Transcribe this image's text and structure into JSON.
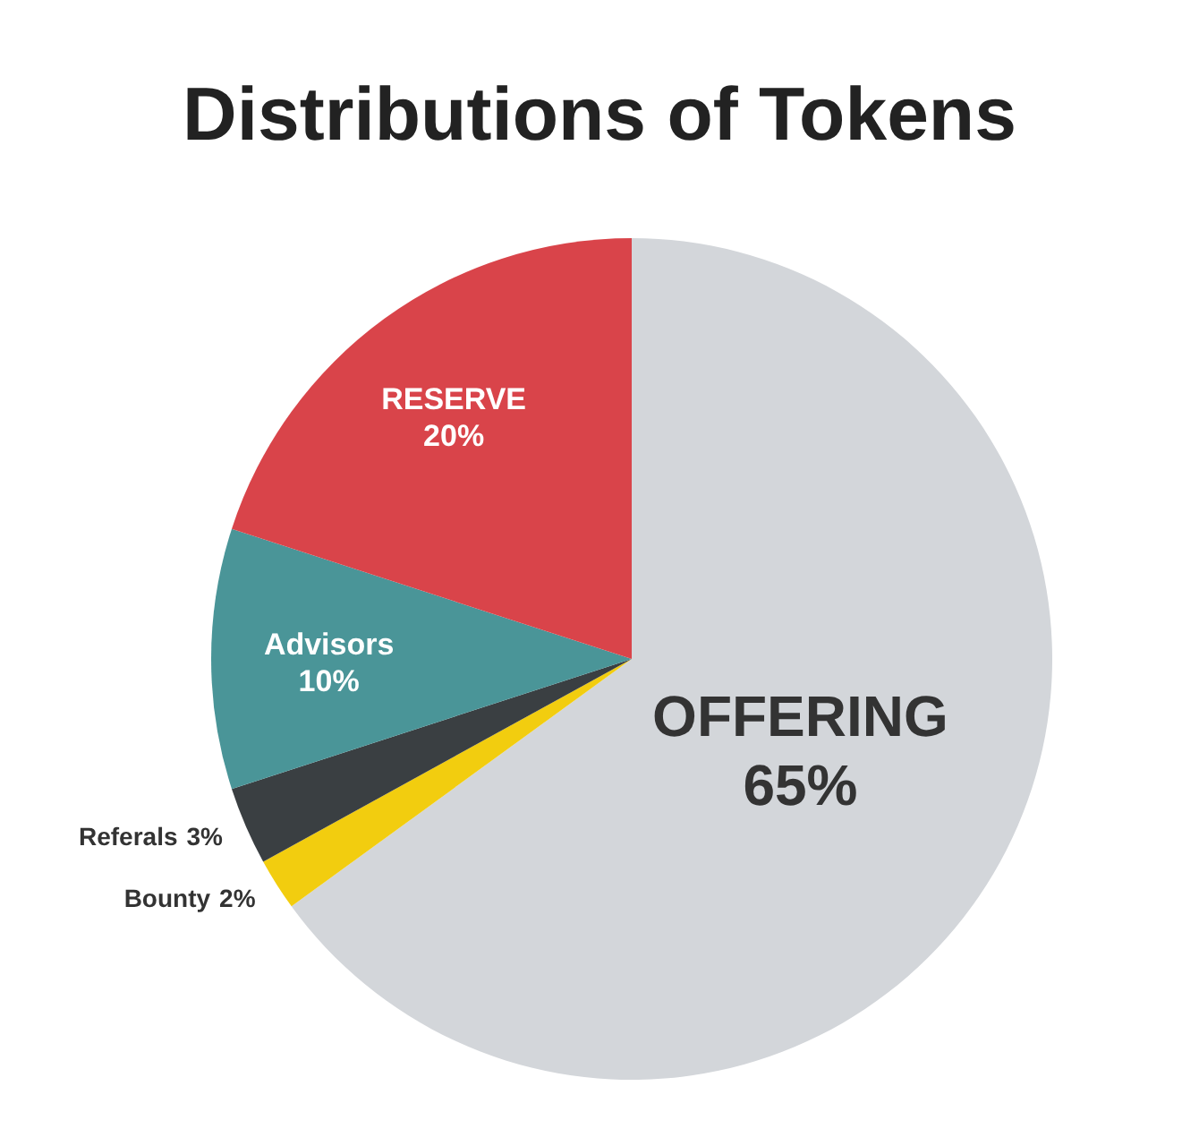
{
  "chart_data": {
    "type": "pie",
    "title": "Distributions of Tokens",
    "categories": [
      "OFFERING",
      "Bounty",
      "Referals",
      "Advisors",
      "RESERVE"
    ],
    "values": [
      65,
      2,
      3,
      10,
      20
    ],
    "colors": [
      "#d3d6da",
      "#f2cd0f",
      "#3a3f42",
      "#4a9598",
      "#d9444a"
    ],
    "value_labels": [
      "65%",
      "2%",
      "3%",
      "10%",
      "20%"
    ]
  }
}
